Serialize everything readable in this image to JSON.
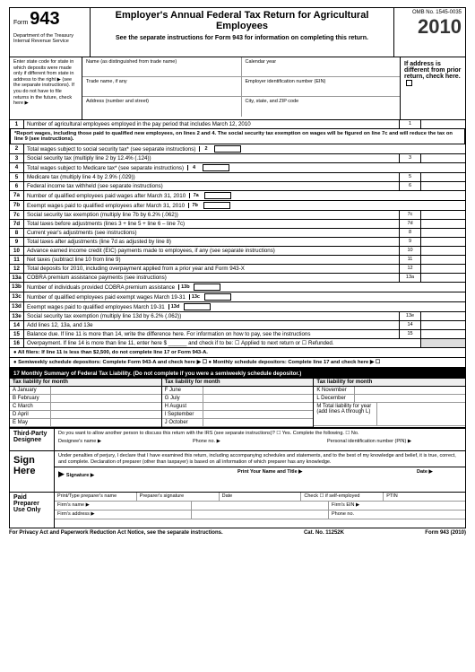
{
  "header": {
    "form_label": "Form",
    "form_number": "943",
    "dept": "Department of the Treasury\nInternal Revenue Service",
    "title": "Employer's Annual Federal Tax Return for Agricultural Employees",
    "subtitle": "See the separate instructions for Form 943 for information on completing this return.",
    "omb": "OMB No. 1545-0035",
    "year": "2010"
  },
  "meta": {
    "left_note": "Enter state code for state in which deposits were made only if different from state in address to the right ▶ (see the separate instructions).\nIf you do not have to file returns in the future, check here ▶",
    "name_lbl": "Name (as distinguished from trade name)",
    "cal_lbl": "Calendar year",
    "trade_lbl": "Trade name, if any",
    "ein_lbl": "Employer identification number (EIN)",
    "addr_lbl": "Address (number and street)",
    "city_lbl": "City, state, and ZIP code",
    "right_note": "If address is different from prior return, check here."
  },
  "lines": [
    {
      "n": "1",
      "t": "Number of agricultural employees employed in the pay period that includes March 12, 2010",
      "rb": "1"
    },
    {
      "note": "*Report wages, including those paid to qualified new employees, on lines 2 and 4. The social security tax exemption on wages will be figured on line 7c and will reduce the tax on line 9 (see instructions)."
    },
    {
      "n": "2",
      "t": "Total wages subject to social security tax* (see separate instructions)",
      "ib": "2"
    },
    {
      "n": "3",
      "t": "Social security tax (multiply line 2 by 12.4% (.124))",
      "rb": "3"
    },
    {
      "n": "4",
      "t": "Total wages subject to Medicare tax* (see separate instructions)",
      "ib": "4"
    },
    {
      "n": "5",
      "t": "Medicare tax (multiply line 4 by 2.9% (.029))",
      "rb": "5"
    },
    {
      "n": "6",
      "t": "Federal income tax withheld (see separate instructions)",
      "rb": "6",
      "side": "See instructions for definitions of qualified employees and exempt wages."
    },
    {
      "n": "7a",
      "t": "Number of qualified employees paid wages after March 31, 2010",
      "ib": "7a"
    },
    {
      "n": "7b",
      "t": "Exempt wages paid to qualified employees after March 31, 2010",
      "ib": "7b"
    },
    {
      "n": "7c",
      "t": "Social security tax exemption (multiply line 7b by 6.2% (.062))",
      "rb": "7c"
    },
    {
      "n": "7d",
      "t": "Total taxes before adjustments (lines 3 + line 5 + line 6 – line 7c)",
      "rb": "7d"
    },
    {
      "n": "8",
      "t": "Current year's adjustments (see instructions)",
      "rb": "8"
    },
    {
      "n": "9",
      "t": "Total taxes after adjustments (line 7d as adjusted by line 8)",
      "rb": "9"
    },
    {
      "n": "10",
      "t": "Advance earned income credit (EIC) payments made to employees, if any (see separate instructions)",
      "rb": "10"
    },
    {
      "n": "11",
      "t": "Net taxes (subtract line 10 from line 9)",
      "rb": "11"
    },
    {
      "n": "12",
      "t": "Total deposits for 2010, including overpayment applied from a prior year and Form 943-X",
      "rb": "12"
    },
    {
      "n": "13a",
      "t": "COBRA premium assistance payments (see instructions)",
      "rb": "13a"
    },
    {
      "n": "13b",
      "t": "Number of individuals provided COBRA premium assistance",
      "ib": "13b"
    },
    {
      "n": "13c",
      "t": "Number of qualified employees paid exempt wages March 19-31",
      "ib": "13c"
    },
    {
      "n": "13d",
      "t": "Exempt wages paid to qualified employees March 19-31",
      "ib": "13d"
    },
    {
      "n": "13e",
      "t": "Social security tax exemption (multiply line 13d by 6.2% (.062))",
      "rb": "13e"
    },
    {
      "n": "14",
      "t": "Add lines 12, 13a, and 13e",
      "rb": "14"
    },
    {
      "n": "15",
      "t": "Balance due. If line 11 is more than 14, write the difference here. For information on how to pay, see the instructions",
      "rb": "15"
    },
    {
      "n": "16",
      "t": "Overpayment. If line 14 is more than line 11, enter here $ ______ and check if to be: ☐ Applied to next return or ☐ Refunded."
    }
  ],
  "bullets": {
    "a": "● All filers: If line 11 is less than $2,500, do not complete line 17 or Form 943-A.",
    "b": "● Semiweekly schedule depositors: Complete Form 943-A and check here ▶ ☐    ● Monthly schedule depositors: Complete line 17 and check here ▶ ☐"
  },
  "sec17": {
    "hd": "17   Monthly Summary of Federal Tax Liability. (Do not complete if you were a semiweekly schedule depositor.)",
    "col_hd": "Tax liability for month",
    "months_a": [
      "A  January",
      "B  February",
      "C  March",
      "D  April",
      "E  May"
    ],
    "months_b": [
      "F  June",
      "G  July",
      "H  August",
      "I  September",
      "J  October"
    ],
    "months_c": [
      "K  November",
      "L  December"
    ],
    "total": "M  Total liability for year (add lines A through L)"
  },
  "third": {
    "lbl": "Third-Party Designee",
    "q": "Do you want to allow another person to discuss this return with the IRS (see separate instructions)?   ☐ Yes. Complete the following.  ☐ No.",
    "name": "Designee's name ▶",
    "phone": "Phone no. ▶",
    "pin": "Personal identification number (PIN) ▶"
  },
  "sign": {
    "lbl": "Sign Here",
    "perjury": "Under penalties of perjury, I declare that I have examined this return, including accompanying schedules and statements, and to the best of my knowledge and belief, it is true, correct, and complete. Declaration of preparer (other than taxpayer) is based on all information of which preparer has any knowledge.",
    "sig": "Signature ▶",
    "name_title": "Print Your Name and Title ▶",
    "date": "Date ▶"
  },
  "paid": {
    "lbl": "Paid Preparer Use Only",
    "r1": [
      "Print/Type preparer's name",
      "Preparer's signature",
      "Date",
      "Check ☐ if self-employed",
      "PTIN"
    ],
    "r2": [
      "Firm's name ▶",
      "",
      "Firm's EIN ▶"
    ],
    "r3": [
      "Firm's address ▶",
      "",
      "Phone no."
    ]
  },
  "footer": {
    "l": "For Privacy Act and Paperwork Reduction Act Notice, see the separate instructions.",
    "c": "Cat. No. 11252K",
    "r": "Form 943 (2010)"
  }
}
